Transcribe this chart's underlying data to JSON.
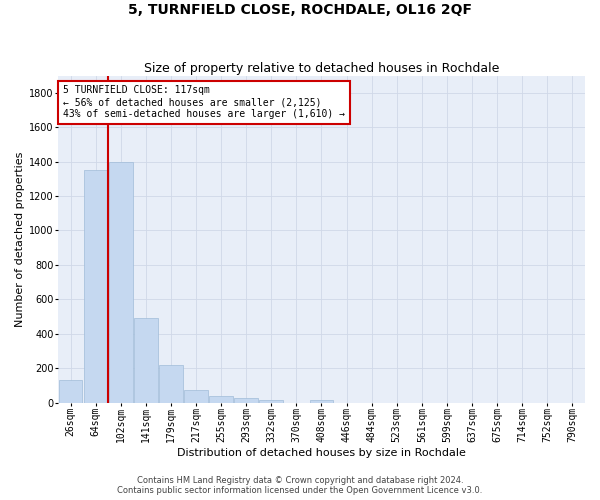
{
  "title": "5, TURNFIELD CLOSE, ROCHDALE, OL16 2QF",
  "subtitle": "Size of property relative to detached houses in Rochdale",
  "xlabel": "Distribution of detached houses by size in Rochdale",
  "ylabel": "Number of detached properties",
  "footer_line1": "Contains HM Land Registry data © Crown copyright and database right 2024.",
  "footer_line2": "Contains public sector information licensed under the Open Government Licence v3.0.",
  "bar_labels": [
    "26sqm",
    "64sqm",
    "102sqm",
    "141sqm",
    "179sqm",
    "217sqm",
    "255sqm",
    "293sqm",
    "332sqm",
    "370sqm",
    "408sqm",
    "446sqm",
    "484sqm",
    "523sqm",
    "561sqm",
    "599sqm",
    "637sqm",
    "675sqm",
    "714sqm",
    "752sqm",
    "790sqm"
  ],
  "bar_values": [
    130,
    1350,
    1400,
    490,
    220,
    75,
    40,
    25,
    15,
    0,
    15,
    0,
    0,
    0,
    0,
    0,
    0,
    0,
    0,
    0,
    0
  ],
  "bar_color": "#c5d8f0",
  "bar_edge_color": "#a0bcd8",
  "red_line_index": 2,
  "red_line_color": "#cc0000",
  "annotation_line1": "5 TURNFIELD CLOSE: 117sqm",
  "annotation_line2": "← 56% of detached houses are smaller (2,125)",
  "annotation_line3": "43% of semi-detached houses are larger (1,610) →",
  "annotation_box_color": "#ffffff",
  "annotation_box_edge": "#cc0000",
  "ylim": [
    0,
    1900
  ],
  "yticks": [
    0,
    200,
    400,
    600,
    800,
    1000,
    1200,
    1400,
    1600,
    1800
  ],
  "grid_color": "#d0d8e8",
  "bg_color": "#e8eef8",
  "title_fontsize": 10,
  "subtitle_fontsize": 9,
  "xlabel_fontsize": 8,
  "ylabel_fontsize": 8,
  "tick_fontsize": 7,
  "annotation_fontsize": 7,
  "footer_fontsize": 6
}
